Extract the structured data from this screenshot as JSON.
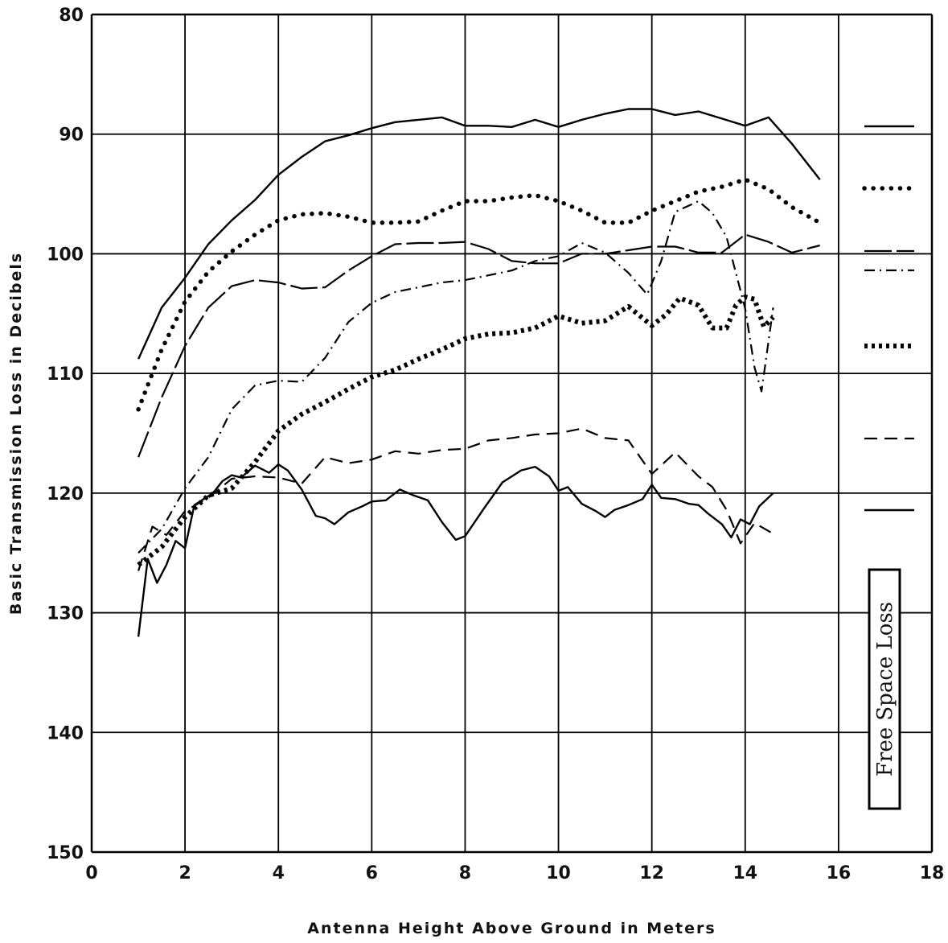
{
  "chart_data": {
    "type": "line",
    "title": "",
    "xlabel": "Antenna Height Above Ground in Meters",
    "ylabel": "Basic Transmission Loss in Decibels",
    "xlim": [
      0,
      18
    ],
    "ylim": [
      150,
      80
    ],
    "y_inverted": true,
    "grid": true,
    "x_ticks": [
      0,
      2,
      4,
      6,
      8,
      10,
      12,
      14,
      16,
      18
    ],
    "y_ticks": [
      80,
      90,
      100,
      110,
      120,
      130,
      140,
      150
    ],
    "legend_label": "Free Space Loss",
    "legend_placement": "right",
    "series": [
      {
        "style": "solid",
        "x": [
          1,
          1.5,
          2,
          2.5,
          3,
          3.5,
          4,
          4.5,
          5,
          5.5,
          6,
          6.5,
          7,
          7.5,
          8,
          8.5,
          9,
          9.5,
          10,
          10.5,
          11,
          11.5,
          12,
          12.5,
          13,
          13.5,
          14,
          14.5,
          15,
          15.6
        ],
        "y": [
          108.8,
          104.5,
          102,
          99.2,
          97.2,
          95.5,
          93.4,
          91.9,
          90.6,
          90.1,
          89.5,
          89.0,
          88.8,
          88.6,
          89.3,
          89.3,
          89.4,
          88.8,
          89.4,
          88.8,
          88.3,
          87.9,
          87.9,
          88.4,
          88.1,
          88.7,
          89.3,
          88.6,
          90.8,
          93.8
        ]
      },
      {
        "style": "dotted",
        "x": [
          1,
          1.5,
          2,
          2.5,
          3,
          3.5,
          4,
          4.5,
          5,
          5.5,
          6,
          6.5,
          7,
          7.5,
          8,
          8.5,
          9,
          9.5,
          10,
          10.5,
          11,
          11.5,
          12,
          12.5,
          13,
          13.5,
          14,
          14.5,
          15,
          15.6
        ],
        "y": [
          113,
          108,
          104,
          101.5,
          99.8,
          98.4,
          97.2,
          96.7,
          96.6,
          96.9,
          97.4,
          97.4,
          97.3,
          96.4,
          95.6,
          95.6,
          95.3,
          95.1,
          95.6,
          96.4,
          97.4,
          97.4,
          96.4,
          95.6,
          94.8,
          94.4,
          93.8,
          94.6,
          96.1,
          97.4
        ]
      },
      {
        "style": "long-dash",
        "x": [
          1,
          1.5,
          2,
          2.5,
          3,
          3.5,
          4,
          4.5,
          5,
          5.5,
          6,
          6.5,
          7,
          7.5,
          8,
          8.5,
          9,
          9.5,
          10,
          10.5,
          11,
          11.5,
          12,
          12.5,
          13,
          13.5,
          14,
          14.5,
          15,
          15.6
        ],
        "y": [
          117,
          112,
          107.7,
          104.5,
          102.7,
          102.2,
          102.4,
          102.9,
          102.8,
          101.4,
          100.2,
          99.2,
          99.1,
          99.1,
          99.0,
          99.6,
          100.6,
          100.8,
          100.8,
          100.0,
          100.0,
          99.7,
          99.4,
          99.4,
          99.9,
          99.9,
          98.4,
          99.0,
          99.9,
          99.3
        ]
      },
      {
        "style": "dash-dot",
        "x": [
          1,
          1.5,
          2,
          2.5,
          3,
          3.5,
          4,
          4.5,
          5,
          5.5,
          6,
          6.5,
          7,
          7.5,
          8,
          8.5,
          9,
          9.5,
          10,
          10.5,
          11,
          11.5,
          11.9,
          12.2,
          12.5,
          13,
          13.3,
          13.6,
          13.8,
          14,
          14.2,
          14.35,
          14.6
        ],
        "y": [
          125,
          123,
          119.6,
          117,
          113,
          111,
          110.6,
          110.7,
          108.7,
          105.7,
          104.1,
          103.2,
          102.8,
          102.4,
          102.2,
          101.8,
          101.4,
          100.6,
          100.2,
          99.1,
          99.9,
          101.6,
          103.4,
          100.6,
          96.5,
          95.6,
          96.6,
          98.6,
          101.6,
          104.6,
          109.5,
          111.5,
          104.5
        ]
      },
      {
        "style": "heavy-dotted",
        "x": [
          1,
          1.5,
          2,
          2.5,
          3,
          3.5,
          4,
          4.5,
          5,
          5.5,
          6,
          6.5,
          7,
          7.5,
          8,
          8.5,
          9,
          9.5,
          10,
          10.5,
          11,
          11.5,
          12,
          12.3,
          12.6,
          13,
          13.3,
          13.6,
          13.8,
          14,
          14.2,
          14.4,
          14.6
        ],
        "y": [
          126,
          124.5,
          122,
          120.2,
          119.6,
          117.4,
          114.8,
          113.4,
          112.4,
          111.3,
          110.3,
          109.7,
          108.8,
          108.0,
          107.1,
          106.7,
          106.6,
          106.2,
          105.2,
          105.8,
          105.6,
          104.4,
          106.0,
          105.1,
          103.7,
          104.3,
          106.2,
          106.2,
          104.3,
          103.6,
          103.8,
          106.1,
          105.3
        ]
      },
      {
        "style": "short-dash",
        "x": [
          1,
          1.3,
          1.6,
          2,
          2.5,
          3,
          3.5,
          4,
          4.5,
          5,
          5.5,
          6,
          6.5,
          7,
          7.5,
          8,
          8.5,
          9,
          9.5,
          10,
          10.5,
          11,
          11.5,
          12,
          12.5,
          13,
          13.3,
          13.6,
          13.9,
          14.2,
          14.6
        ],
        "y": [
          126.5,
          122.8,
          123.5,
          121.5,
          120.4,
          118.8,
          118.6,
          118.7,
          119.2,
          117,
          117.5,
          117.2,
          116.5,
          116.7,
          116.4,
          116.3,
          115.6,
          115.4,
          115.1,
          115.0,
          114.6,
          115.4,
          115.6,
          118.4,
          116.6,
          118.6,
          119.5,
          121.4,
          124.2,
          122.5,
          123.4
        ]
      },
      {
        "style": "solid",
        "x": [
          1,
          1.2,
          1.4,
          1.6,
          1.8,
          2,
          2.2,
          2.4,
          2.6,
          2.8,
          3,
          3.2,
          3.5,
          3.8,
          4,
          4.2,
          4.5,
          4.8,
          5,
          5.2,
          5.5,
          5.8,
          6,
          6.3,
          6.6,
          6.9,
          7.2,
          7.5,
          7.8,
          8,
          8.4,
          8.8,
          9.2,
          9.5,
          9.8,
          10,
          10.2,
          10.5,
          10.8,
          11,
          11.2,
          11.5,
          11.8,
          12,
          12.2,
          12.5,
          12.8,
          13,
          13.2,
          13.5,
          13.7,
          13.9,
          14.1,
          14.3,
          14.6
        ],
        "y": [
          132,
          125.5,
          127.5,
          126,
          124,
          124.6,
          121,
          120.5,
          120,
          119,
          118.5,
          118.7,
          117.7,
          118.3,
          117.6,
          118.1,
          119.7,
          121.9,
          122.1,
          122.6,
          121.6,
          121.1,
          120.7,
          120.6,
          119.7,
          120.2,
          120.6,
          122.4,
          123.9,
          123.6,
          121.3,
          119.1,
          118.1,
          117.8,
          118.6,
          119.8,
          119.5,
          120.9,
          121.5,
          122.0,
          121.4,
          121.0,
          120.5,
          119.3,
          120.4,
          120.5,
          120.9,
          121.0,
          121.7,
          122.6,
          123.7,
          122.2,
          122.6,
          121.1,
          120.0
        ]
      }
    ]
  }
}
